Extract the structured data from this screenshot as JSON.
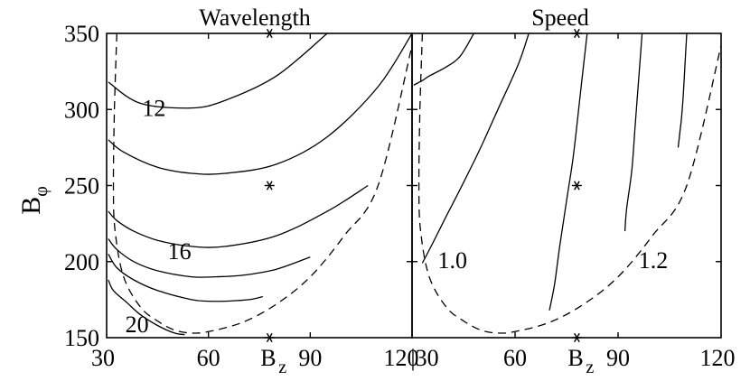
{
  "chart_data": [
    {
      "type": "line",
      "title": "Wavelength",
      "xlabel": "B",
      "xlabel_sub": "z",
      "ylabel": "B",
      "ylabel_sub": "φ",
      "xlim": [
        30,
        120
      ],
      "ylim": [
        150,
        350
      ],
      "xticks": [
        30,
        60,
        90,
        120
      ],
      "xtick_labels": [
        "30",
        "60",
        "90",
        "120"
      ],
      "yticks": [
        150,
        200,
        250,
        300,
        350
      ],
      "ytick_labels": [
        "150",
        "200",
        "250",
        "300",
        "350"
      ],
      "series": [
        {
          "name": "contour-a",
          "style": "solid",
          "x": [
            95,
            80,
            65,
            55,
            40,
            30.5
          ],
          "y": [
            350,
            322,
            306,
            301,
            304,
            318
          ]
        },
        {
          "name": "contour-b",
          "style": "solid",
          "x": [
            120,
            110,
            95,
            80,
            65,
            55,
            45,
            35,
            30.5
          ],
          "y": [
            350,
            315,
            282,
            264,
            258,
            258,
            262,
            272,
            280
          ]
        },
        {
          "name": "contour-c",
          "style": "solid",
          "x": [
            107,
            95,
            80,
            65,
            55,
            45,
            38,
            33,
            30.5
          ],
          "y": [
            250,
            233,
            217,
            210,
            210,
            214,
            220,
            227,
            233
          ]
        },
        {
          "name": "contour-d",
          "style": "solid",
          "x": [
            90,
            80,
            70,
            62,
            55,
            45,
            38,
            33,
            30.5
          ],
          "y": [
            203,
            195,
            191,
            190,
            190,
            194,
            200,
            208,
            215
          ]
        },
        {
          "name": "contour-e",
          "style": "solid",
          "x": [
            76,
            72,
            65,
            60,
            55,
            45,
            38,
            33,
            30.5
          ],
          "y": [
            177,
            175,
            174,
            174,
            175,
            181,
            188,
            196,
            205
          ]
        },
        {
          "name": "contour-f",
          "style": "solid",
          "x": [
            53,
            50,
            45,
            40,
            36,
            32,
            30.5
          ],
          "y": [
            152,
            153,
            158,
            165,
            173,
            181,
            188
          ]
        },
        {
          "name": "boundary",
          "style": "dashed",
          "x": [
            33,
            32.3,
            32,
            32.5,
            35,
            40,
            45,
            50,
            55,
            60,
            70,
            80,
            90,
            100,
            110,
            120
          ],
          "y": [
            350,
            300,
            250,
            220,
            190,
            170,
            161,
            155,
            153,
            154,
            160,
            172,
            190,
            217,
            250,
            342
          ]
        }
      ],
      "labels": [
        {
          "text": "12",
          "x": 40.5,
          "y": 301
        },
        {
          "text": "16",
          "x": 48,
          "y": 207
        },
        {
          "text": "20",
          "x": 35.5,
          "y": 159
        }
      ],
      "markers": [
        {
          "x": 78,
          "y": 350
        },
        {
          "x": 78,
          "y": 250
        },
        {
          "x": 78,
          "y": 150
        }
      ]
    },
    {
      "type": "line",
      "title": "Speed",
      "xlabel": "B",
      "xlabel_sub": "z",
      "xlim": [
        30,
        120
      ],
      "ylim": [
        150,
        350
      ],
      "xticks": [
        30,
        60,
        90,
        120
      ],
      "xtick_labels": [
        "|30",
        "60",
        "90",
        "120"
      ],
      "series": [
        {
          "name": "contour-a",
          "style": "solid",
          "x": [
            48,
            44,
            40,
            35,
            33,
            30.5
          ],
          "y": [
            350,
            335,
            328,
            322,
            319,
            316
          ]
        },
        {
          "name": "contour-b",
          "style": "solid",
          "x": [
            64,
            61,
            55,
            50,
            45,
            40,
            36,
            33
          ],
          "y": [
            350,
            330,
            300,
            275,
            252,
            230,
            212,
            199
          ]
        },
        {
          "name": "contour-c",
          "style": "solid",
          "x": [
            81,
            79,
            77,
            75,
            73,
            71.5,
            70
          ],
          "y": [
            350,
            310,
            270,
            240,
            210,
            185,
            168
          ]
        },
        {
          "name": "contour-d",
          "style": "solid",
          "x": [
            97,
            96,
            95,
            94,
            92.5,
            92
          ],
          "y": [
            350,
            320,
            290,
            260,
            235,
            220
          ]
        },
        {
          "name": "contour-e",
          "style": "solid",
          "x": [
            110,
            109.5,
            109,
            108.5,
            108,
            107.5
          ],
          "y": [
            350,
            330,
            310,
            295,
            285,
            275
          ]
        },
        {
          "name": "boundary",
          "style": "dashed",
          "x": [
            33,
            32.3,
            32,
            32.5,
            35,
            40,
            45,
            50,
            55,
            60,
            70,
            80,
            90,
            100,
            110,
            120
          ],
          "y": [
            350,
            300,
            250,
            220,
            190,
            170,
            161,
            155,
            153,
            154,
            160,
            172,
            190,
            217,
            250,
            342
          ]
        }
      ],
      "labels": [
        {
          "text": "1.0",
          "x": 37.5,
          "y": 201
        },
        {
          "text": "1.2",
          "x": 96,
          "y": 201
        }
      ],
      "markers": [
        {
          "x": 78,
          "y": 350
        },
        {
          "x": 78,
          "y": 250
        },
        {
          "x": 78,
          "y": 150
        }
      ]
    }
  ]
}
